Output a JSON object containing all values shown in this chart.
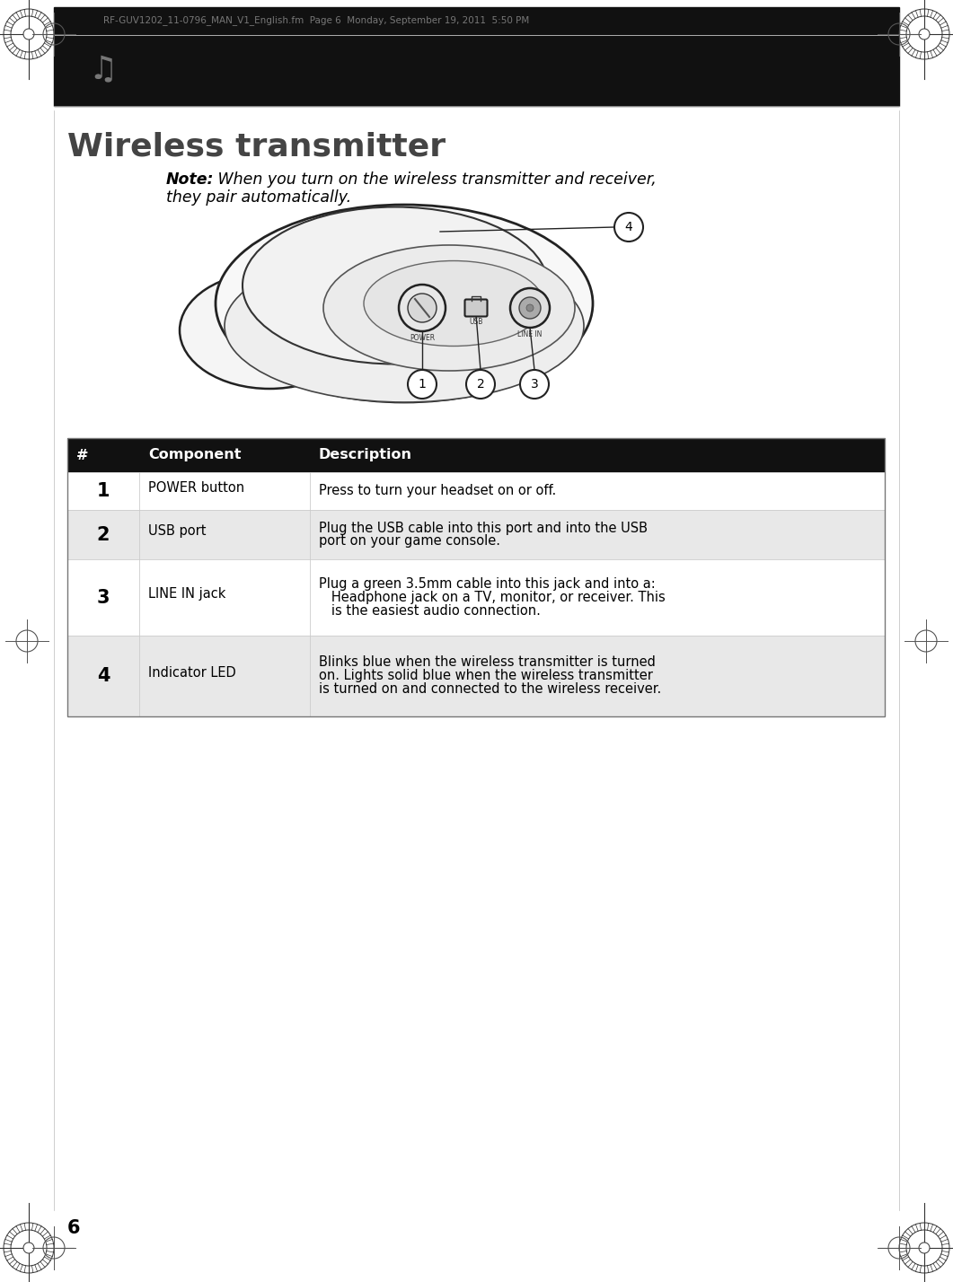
{
  "page_bg": "#ffffff",
  "header_bar_color": "#111111",
  "header_text": "RF-GUV1202_11-0796_MAN_V1_English.fm  Page 6  Monday, September 19, 2011  5:50 PM",
  "header_text_color": "#777777",
  "title": "Wireless transmitter",
  "title_color": "#444444",
  "title_fontsize": 26,
  "note_bold": "Note:",
  "note_line1": " When you turn on the wireless transmitter and receiver,",
  "note_line2": "they pair automatically.",
  "note_fontsize": 12.5,
  "table_header_bg": "#111111",
  "table_header_text_color": "#ffffff",
  "table_row_bg_odd": "#ffffff",
  "table_row_bg_even": "#e8e8e8",
  "table_col_headers": [
    "#",
    "Component",
    "Description"
  ],
  "table_rows": [
    [
      "1",
      "POWER button",
      "Press to turn your headset on or off."
    ],
    [
      "2",
      "USB port",
      "Plug the USB cable into this port and into the USB\nport on your game console."
    ],
    [
      "3",
      "LINE IN jack",
      "Plug a green 3.5mm cable into this jack and into a:\n   Headphone jack on a TV, monitor, or receiver. This\n   is the easiest audio connection."
    ],
    [
      "4",
      "Indicator LED",
      "Blinks blue when the wireless transmitter is turned\non. Lights solid blue when the wireless transmitter\nis turned on and connected to the wireless receiver."
    ]
  ],
  "page_number": "6",
  "footer_text_color": "#000000"
}
